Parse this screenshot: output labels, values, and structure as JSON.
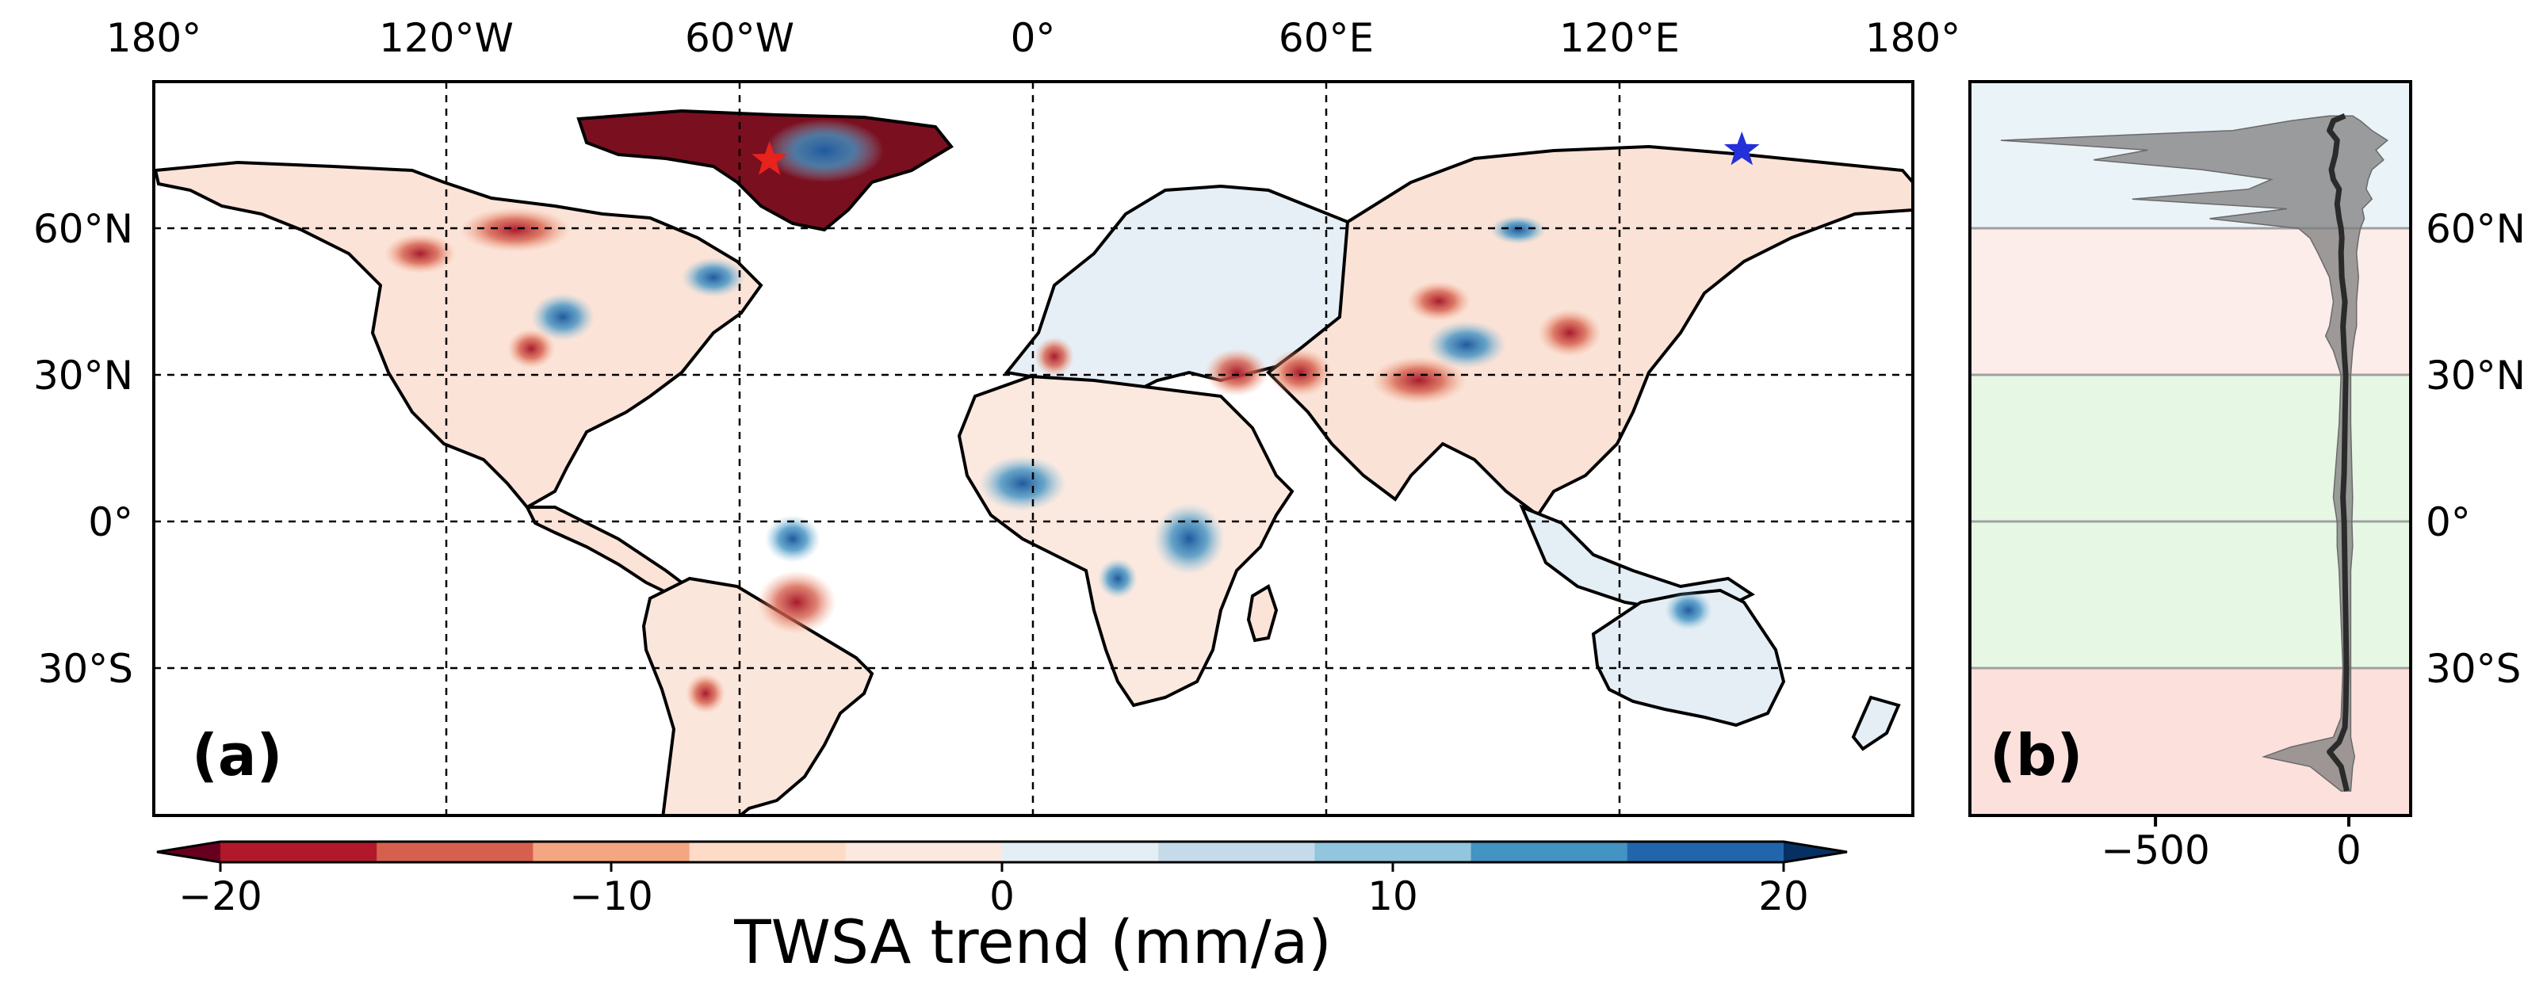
{
  "figure": {
    "panel_a_label": "(a)",
    "panel_b_label": "(b)"
  },
  "map": {
    "lon_ticks": [
      "180°",
      "120°W",
      "60°W",
      "0°",
      "60°E",
      "120°E",
      "180°"
    ],
    "lat_ticks": [
      "60°N",
      "30°N",
      "0°",
      "30°S"
    ],
    "lon_range": [
      -180,
      180
    ],
    "lat_range": [
      -60,
      90
    ],
    "markers": [
      {
        "name": "red-star",
        "lon": -54,
        "lat": 74,
        "color": "#e8221c"
      },
      {
        "name": "blue-star",
        "lon": 145,
        "lat": 76,
        "color": "#2430d8"
      }
    ]
  },
  "colorbar": {
    "title": "TWSA trend (mm/a)",
    "tick_labels": [
      "−20",
      "−10",
      "0",
      "10",
      "20"
    ],
    "tick_values": [
      -20,
      -10,
      0,
      10,
      20
    ],
    "range": [
      -20,
      20
    ],
    "colors": [
      "#67001f",
      "#b2182b",
      "#d6604d",
      "#f4a582",
      "#fddbc7",
      "#fbe9e0",
      "#e4eef5",
      "#c5dbea",
      "#92c5de",
      "#4393c3",
      "#2166ac",
      "#053061"
    ]
  },
  "profile": {
    "x_ticks": [
      "−500",
      "0"
    ],
    "x_tick_values": [
      -500,
      0
    ],
    "x_range": [
      -980,
      160
    ],
    "lat_ticks": [
      "60°N",
      "30°N",
      "0°",
      "30°S"
    ],
    "bands": [
      {
        "lat_from": 60,
        "lat_to": 90,
        "color": "#eaf3f8"
      },
      {
        "lat_from": 30,
        "lat_to": 60,
        "color": "#fcecea"
      },
      {
        "lat_from": -30,
        "lat_to": 30,
        "color": "#e6f8e3"
      },
      {
        "lat_from": -60,
        "lat_to": -30,
        "color": "#fbe0dc"
      }
    ],
    "mean_curve": {
      "lat": [
        -55,
        -50,
        -47,
        -45,
        -42,
        -38,
        -30,
        -20,
        -10,
        0,
        5,
        10,
        20,
        30,
        35,
        40,
        45,
        50,
        55,
        58,
        60,
        62,
        65,
        68,
        70,
        72,
        75,
        78,
        80,
        82,
        83
      ],
      "value": [
        -5,
        -20,
        -50,
        -25,
        -10,
        -8,
        -6,
        -8,
        -10,
        -12,
        -15,
        -12,
        -10,
        -8,
        -12,
        -15,
        -10,
        -18,
        -20,
        -18,
        -20,
        -25,
        -30,
        -25,
        -40,
        -45,
        -35,
        -30,
        -50,
        -40,
        -10
      ]
    },
    "spread_area": {
      "lat": [
        -55,
        -50,
        -48,
        -46,
        -44,
        -40,
        -30,
        -20,
        -10,
        -5,
        0,
        5,
        10,
        20,
        30,
        35,
        38,
        40,
        45,
        50,
        55,
        58,
        60,
        62,
        64,
        66,
        68,
        70,
        72,
        74,
        76,
        78,
        80,
        82,
        83
      ],
      "min": [
        -20,
        -100,
        -220,
        -150,
        -40,
        -20,
        -15,
        -20,
        -25,
        -30,
        -30,
        -40,
        -35,
        -25,
        -20,
        -40,
        -60,
        -50,
        -40,
        -50,
        -80,
        -100,
        -130,
        -360,
        -160,
        -560,
        -260,
        -200,
        -380,
        -660,
        -520,
        -900,
        -300,
        -150,
        -50
      ],
      "max": [
        5,
        10,
        15,
        10,
        5,
        5,
        5,
        5,
        5,
        10,
        8,
        10,
        8,
        5,
        5,
        10,
        15,
        20,
        20,
        25,
        20,
        25,
        30,
        40,
        35,
        60,
        45,
        50,
        60,
        90,
        70,
        100,
        60,
        30,
        10
      ]
    }
  }
}
